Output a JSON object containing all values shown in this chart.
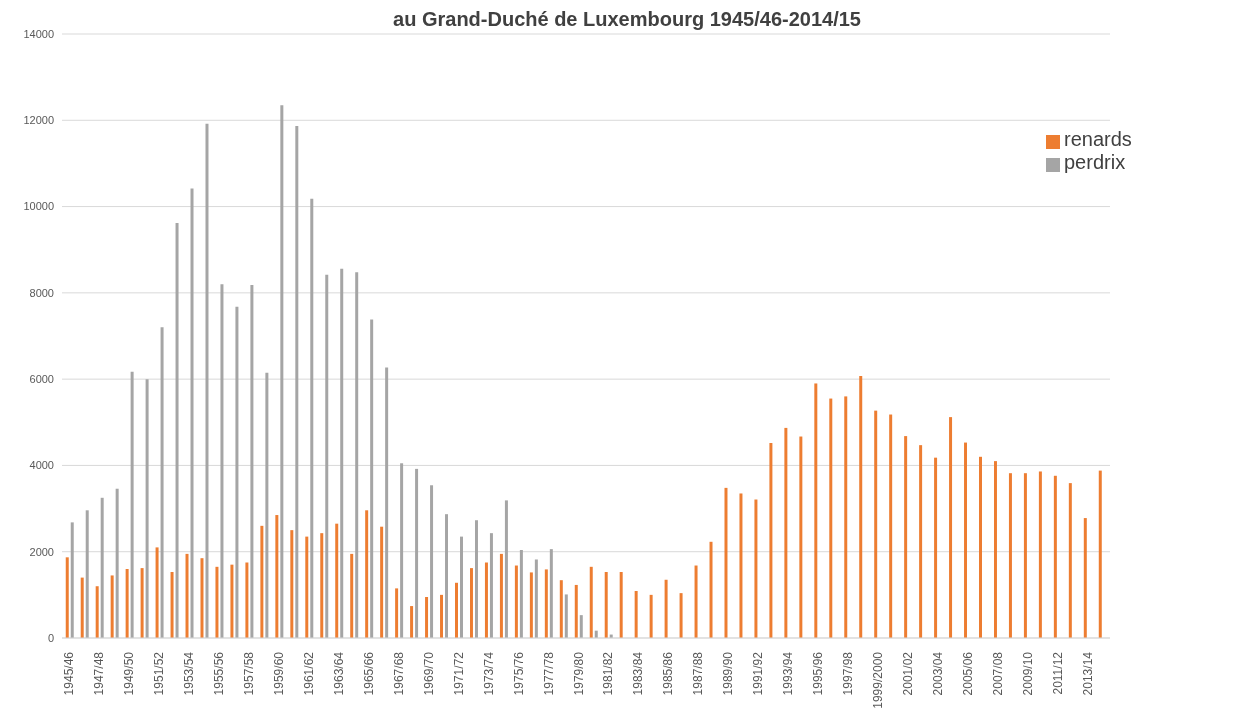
{
  "chart_data": {
    "type": "bar",
    "title": "au Grand-Duché de Luxembourg 1945/46-2014/15",
    "categories": [
      "1945/46",
      null,
      "1947/48",
      null,
      "1949/50",
      null,
      "1951/52",
      null,
      "1953/54",
      null,
      "1955/56",
      null,
      "1957/58",
      null,
      "1959/60",
      null,
      "1961/62",
      null,
      "1963/64",
      null,
      "1965/66",
      null,
      "1967/68",
      null,
      "1969/70",
      null,
      "1971/72",
      null,
      "1973/74",
      null,
      "1975/76",
      null,
      "1977/78",
      null,
      "1979/80",
      null,
      "1981/82",
      null,
      "1983/84",
      null,
      "1985/86",
      null,
      "1987/88",
      null,
      "1989/90",
      null,
      "1991/92",
      null,
      "1993/94",
      null,
      "1995/96",
      null,
      "1997/98",
      null,
      "1999/2000",
      null,
      "2001/02",
      null,
      "2003/04",
      null,
      "2005/06",
      null,
      "2007/08",
      null,
      "2009/10",
      null,
      "2011/12",
      null,
      "2013/14",
      null
    ],
    "series": [
      {
        "name": "renards",
        "color": "#ed7d31",
        "values": [
          1870,
          1400,
          1200,
          1450,
          1600,
          1620,
          2100,
          1530,
          1950,
          1850,
          1650,
          1700,
          1750,
          2600,
          2850,
          2500,
          2350,
          2430,
          2650,
          1950,
          2960,
          2580,
          1150,
          740,
          950,
          1000,
          1280,
          1620,
          1750,
          1950,
          1680,
          1520,
          1590,
          1340,
          1230,
          1650,
          1530,
          1530,
          1090,
          1000,
          1350,
          1040,
          1680,
          2230,
          3480,
          3350,
          3210,
          4520,
          4870,
          4670,
          5900,
          5550,
          5600,
          6070,
          5270,
          5180,
          4680,
          4470,
          4180,
          5120,
          4530,
          4200,
          4100,
          3820,
          3820,
          3860,
          3760,
          3590,
          2780,
          3880
        ]
      },
      {
        "name": "perdrix",
        "color": "#a5a5a5",
        "values": [
          2680,
          2960,
          3250,
          3460,
          6170,
          6000,
          7200,
          9620,
          10420,
          11920,
          8200,
          7680,
          8180,
          6150,
          12350,
          11870,
          10180,
          8420,
          8560,
          8480,
          7380,
          6270,
          4050,
          3920,
          3540,
          2870,
          2350,
          2730,
          2430,
          3190,
          2040,
          1820,
          2060,
          1010,
          530,
          170,
          80,
          null,
          null,
          null,
          null,
          null,
          null,
          null,
          null,
          null,
          null,
          null,
          null,
          null,
          null,
          null,
          null,
          null,
          null,
          null,
          null,
          null,
          null,
          null,
          null,
          null,
          null,
          null,
          null,
          null,
          null,
          null,
          null,
          null
        ]
      }
    ],
    "ylim": [
      0,
      14000
    ],
    "yticks": [
      0,
      2000,
      4000,
      6000,
      8000,
      10000,
      12000,
      14000
    ],
    "grid": "y",
    "legend": "top right"
  }
}
